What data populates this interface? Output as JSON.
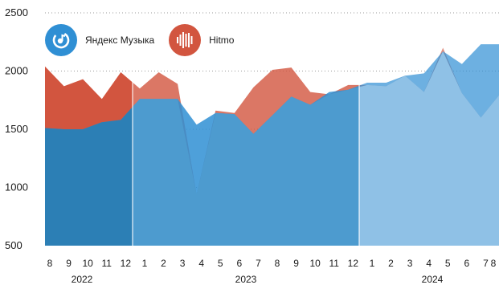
{
  "chart_data": {
    "type": "area",
    "yticks": [
      500,
      1000,
      1500,
      2000,
      2500
    ],
    "ylim": [
      500,
      2500
    ],
    "x_labels": [
      "8",
      "9",
      "10",
      "11",
      "12",
      "1",
      "2",
      "3",
      "4",
      "5",
      "6",
      "7",
      "8",
      "9",
      "10",
      "11",
      "12",
      "1",
      "2",
      "3",
      "4",
      "5",
      "6",
      "7",
      "8"
    ],
    "years": [
      {
        "label": "2022",
        "from": 0,
        "to": 4
      },
      {
        "label": "2023",
        "from": 5,
        "to": 16
      },
      {
        "label": "2024",
        "from": 17,
        "to": 24
      }
    ],
    "series": [
      {
        "name": "Яндекс Музыка",
        "color": "#2f8fd4",
        "values": [
          1510,
          1500,
          1500,
          1560,
          1580,
          1760,
          1760,
          1760,
          1540,
          1640,
          1630,
          1460,
          1620,
          1780,
          1710,
          1820,
          1840,
          1900,
          1900,
          1960,
          1980,
          2170,
          2060,
          2230,
          2230
        ]
      },
      {
        "name": "Hitmo",
        "color": "#d2553f",
        "values": [
          2040,
          1870,
          1930,
          1760,
          1990,
          1850,
          1990,
          1890,
          940,
          1660,
          1640,
          1860,
          2010,
          2030,
          1820,
          1800,
          1880,
          1880,
          1870,
          1960,
          1820,
          2200,
          1810,
          1600,
          1800
        ]
      }
    ]
  },
  "legend": {
    "yandex_label": "Яндекс Музыка",
    "hitmo_label": "Hitmo",
    "yandex_icon": "yandex-music-icon",
    "hitmo_icon": "hitmo-icon",
    "yandex_icon_color": "#2f8fd4",
    "hitmo_icon_color": "#d2553f"
  }
}
